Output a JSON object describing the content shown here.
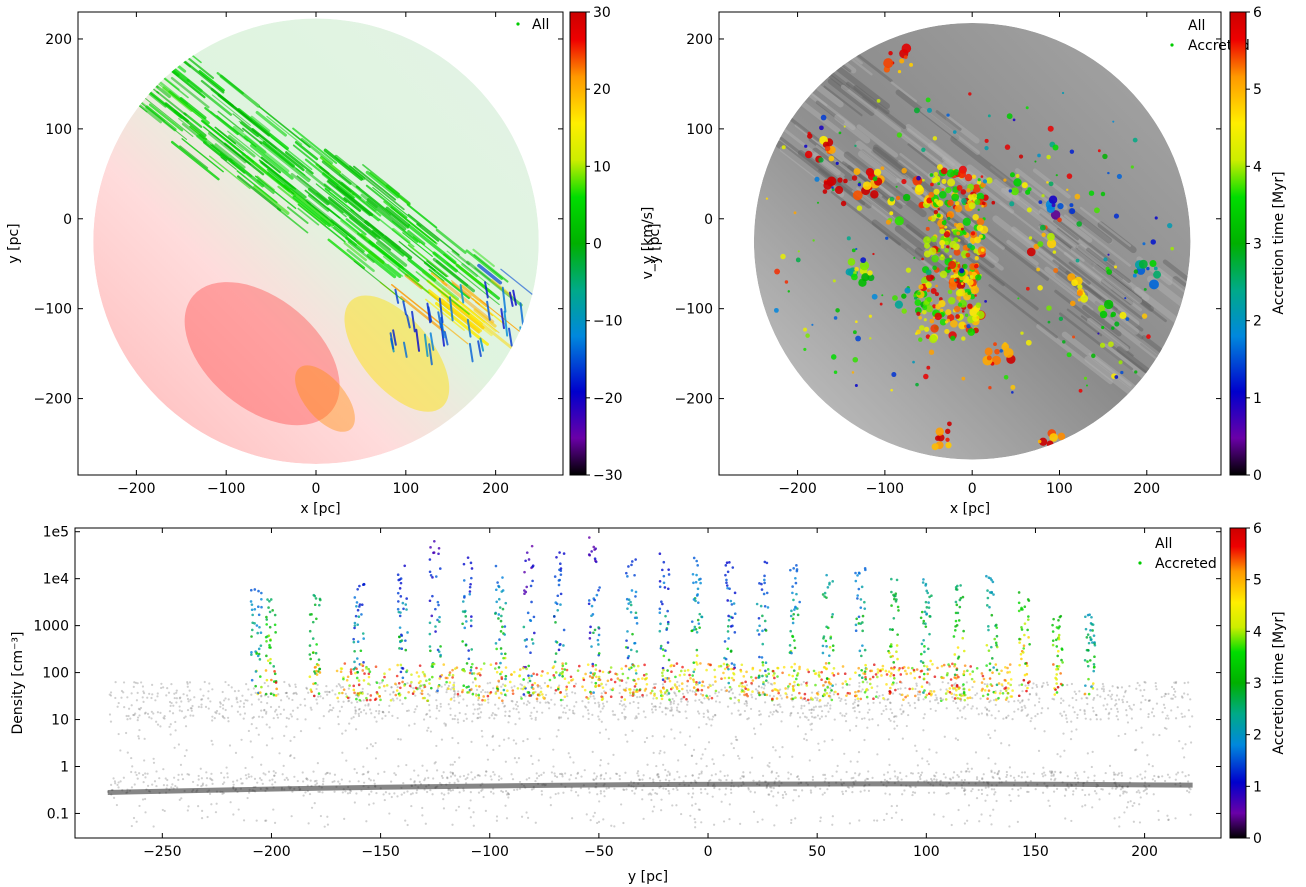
{
  "chart_data": [
    {
      "type": "scatter",
      "panel": "top-left",
      "xlabel": "x [pc]",
      "ylabel": "y [pc]",
      "xlim": [
        -265,
        275
      ],
      "ylim": [
        -285,
        230
      ],
      "x_ticks": [
        -200,
        -100,
        0,
        100,
        200
      ],
      "y_ticks": [
        -200,
        -100,
        0,
        100,
        200
      ],
      "x_tick_labels": [
        "−200",
        "−100",
        "0",
        "100",
        "200"
      ],
      "y_tick_labels": [
        "−200",
        "−100",
        "0",
        "100",
        "200"
      ],
      "grid": false,
      "legend": {
        "position": "top-right",
        "entries": [
          "All"
        ]
      },
      "colorbar": {
        "label": "v_y [km/s]",
        "range": [
          -30,
          30
        ],
        "ticks": [
          -30,
          -20,
          -10,
          0,
          10,
          20,
          30
        ],
        "tick_labels": [
          "−30",
          "−20",
          "−10",
          "0",
          "10",
          "20",
          "30"
        ],
        "colormap": "nipy_spectral"
      },
      "region": {
        "shape": "circle",
        "center": [
          0,
          -25
        ],
        "radius": 248
      },
      "series": [
        {
          "name": "All",
          "features": [
            {
              "label": "green filaments (v_y ≈ 0–5)",
              "x": [
                -200,
                150
              ],
              "y": [
                160,
                -60
              ]
            },
            {
              "label": "red region (v_y ≈ 28)",
              "x": [
                -140,
                50
              ],
              "y": [
                -50,
                -270
              ]
            },
            {
              "label": "yellow/orange region (v_y ≈ 18)",
              "x": [
                30,
                150
              ],
              "y": [
                -60,
                -220
              ]
            },
            {
              "label": "blue edge (v_y ≈ −20)",
              "x": [
                190,
                240
              ],
              "y": [
                -60,
                -130
              ]
            }
          ]
        }
      ]
    },
    {
      "type": "scatter",
      "panel": "top-right",
      "xlabel": "x [pc]",
      "ylabel": "y [pc]",
      "xlim": [
        -290,
        285
      ],
      "ylim": [
        -285,
        230
      ],
      "x_ticks": [
        -200,
        -100,
        0,
        100,
        200
      ],
      "y_ticks": [
        -200,
        -100,
        0,
        100,
        200
      ],
      "x_tick_labels": [
        "−200",
        "−100",
        "0",
        "100",
        "200"
      ],
      "y_tick_labels": [
        "−200",
        "−100",
        "0",
        "100",
        "200"
      ],
      "grid": false,
      "legend": {
        "position": "top-right",
        "entries": [
          "All",
          "Accreted"
        ]
      },
      "colorbar": {
        "label": "Accretion time [Myr]",
        "range": [
          0,
          6
        ],
        "ticks": [
          0,
          1,
          2,
          3,
          4,
          5,
          6
        ],
        "tick_labels": [
          "0",
          "1",
          "2",
          "3",
          "4",
          "5",
          "6"
        ],
        "colormap": "nipy_spectral"
      },
      "region": {
        "shape": "circle",
        "center": [
          0,
          -25
        ],
        "radius": 250
      },
      "series": [
        {
          "name": "All",
          "color": "#8a8a8a"
        },
        {
          "name": "Accreted",
          "clumps": [
            {
              "x": -25,
              "y": -20,
              "t": 4.5
            },
            {
              "x": 10,
              "y": 20,
              "t": 5.5
            },
            {
              "x": -10,
              "y": -60,
              "t": 5.2
            },
            {
              "x": 0,
              "y": -110,
              "t": 4.8
            },
            {
              "x": -50,
              "y": 30,
              "t": 5.0
            },
            {
              "x": -120,
              "y": 40,
              "t": 5.6
            },
            {
              "x": -175,
              "y": 80,
              "t": 5.5
            },
            {
              "x": -160,
              "y": 30,
              "t": 5.8
            },
            {
              "x": -90,
              "y": 10,
              "t": 4.2
            },
            {
              "x": -70,
              "y": -90,
              "t": 3.0
            },
            {
              "x": 60,
              "y": 40,
              "t": 4.0
            },
            {
              "x": 80,
              "y": -30,
              "t": 5.0
            },
            {
              "x": 120,
              "y": -80,
              "t": 4.5
            },
            {
              "x": 160,
              "y": -110,
              "t": 3.5
            },
            {
              "x": 200,
              "y": -60,
              "t": 2.5
            },
            {
              "x": -85,
              "y": 175,
              "t": 5.7
            },
            {
              "x": 30,
              "y": -150,
              "t": 5.8
            },
            {
              "x": -40,
              "y": -240,
              "t": 5.9
            },
            {
              "x": 90,
              "y": -250,
              "t": 5.9
            },
            {
              "x": 100,
              "y": 10,
              "t": 1.5
            },
            {
              "x": -130,
              "y": -60,
              "t": 3.2
            }
          ]
        }
      ]
    },
    {
      "type": "scatter",
      "panel": "bottom",
      "xlabel": "y [pc]",
      "ylabel": "Density [cm⁻³]",
      "y_scale": "log",
      "xlim": [
        -290,
        235
      ],
      "ylim": [
        0.03,
        120000.0
      ],
      "x_ticks": [
        -250,
        -200,
        -150,
        -100,
        -50,
        0,
        50,
        100,
        150,
        200
      ],
      "x_tick_labels": [
        "−250",
        "−200",
        "−150",
        "−100",
        "−50",
        "0",
        "50",
        "100",
        "150",
        "200"
      ],
      "y_ticks": [
        0.1,
        1,
        10,
        100,
        1000,
        10000,
        100000
      ],
      "y_tick_labels": [
        "0.1",
        "1",
        "10",
        "100",
        "1000",
        "1e4",
        "1e5"
      ],
      "grid": false,
      "legend": {
        "position": "top-right",
        "entries": [
          "All",
          "Accreted"
        ]
      },
      "colorbar": {
        "label": "Accretion time [Myr]",
        "range": [
          0,
          6
        ],
        "ticks": [
          0,
          1,
          2,
          3,
          4,
          5,
          6
        ],
        "tick_labels": [
          "0",
          "1",
          "2",
          "3",
          "4",
          "5",
          "6"
        ],
        "colormap": "nipy_spectral"
      },
      "series": [
        {
          "name": "All",
          "color": "#7a7a7a",
          "bands": [
            {
              "label": "dense band",
              "y_range": [
                -275,
                222
              ],
              "density_range": [
                10,
                60
              ]
            },
            {
              "label": "diffuse ridge",
              "y_range": [
                -275,
                222
              ],
              "density_range": [
                0.25,
                0.8
              ]
            }
          ]
        },
        {
          "name": "Accreted",
          "spikes": [
            {
              "y": -207,
              "max": 6000,
              "t": 1.5
            },
            {
              "y": -200,
              "max": 4000,
              "t": 2.5
            },
            {
              "y": -180,
              "max": 5000,
              "t": 2.5
            },
            {
              "y": -160,
              "max": 8000,
              "t": 1.2
            },
            {
              "y": -140,
              "max": 20000,
              "t": 1.0
            },
            {
              "y": -125,
              "max": 80000,
              "t": 0.6
            },
            {
              "y": -110,
              "max": 30000,
              "t": 1.0
            },
            {
              "y": -95,
              "max": 20000,
              "t": 1.5
            },
            {
              "y": -82,
              "max": 70000,
              "t": 0.5
            },
            {
              "y": -68,
              "max": 40000,
              "t": 1.0
            },
            {
              "y": -52,
              "max": 90000,
              "t": 0.5
            },
            {
              "y": -35,
              "max": 30000,
              "t": 1.2
            },
            {
              "y": -20,
              "max": 40000,
              "t": 1.0
            },
            {
              "y": -5,
              "max": 30000,
              "t": 1.5
            },
            {
              "y": 10,
              "max": 30000,
              "t": 1.0
            },
            {
              "y": 25,
              "max": 25000,
              "t": 1.2
            },
            {
              "y": 40,
              "max": 20000,
              "t": 1.5
            },
            {
              "y": 55,
              "max": 15000,
              "t": 2.0
            },
            {
              "y": 70,
              "max": 20000,
              "t": 1.5
            },
            {
              "y": 85,
              "max": 10000,
              "t": 2.5
            },
            {
              "y": 100,
              "max": 12000,
              "t": 2.0
            },
            {
              "y": 115,
              "max": 8000,
              "t": 2.5
            },
            {
              "y": 130,
              "max": 12000,
              "t": 2.0
            },
            {
              "y": 145,
              "max": 6000,
              "t": 3.0
            },
            {
              "y": 160,
              "max": 2000,
              "t": 3.0
            },
            {
              "y": 175,
              "max": 2000,
              "t": 2.0
            }
          ]
        }
      ]
    }
  ]
}
